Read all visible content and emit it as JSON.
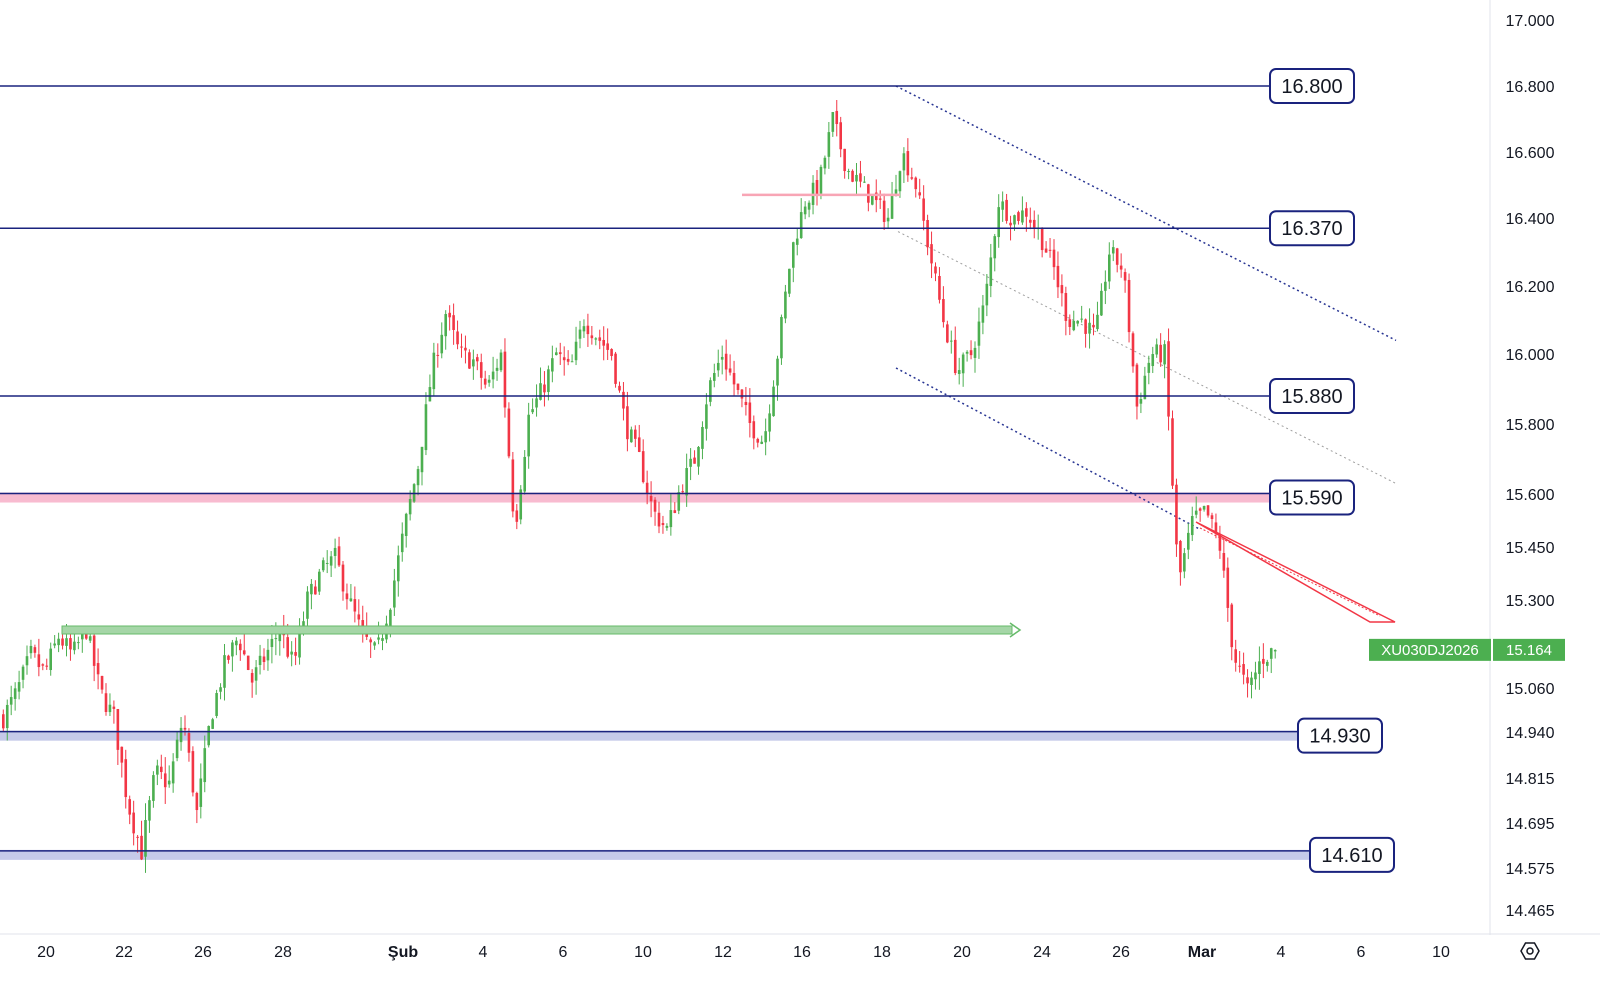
{
  "chart_data": {
    "type": "candlestick",
    "symbol": "XU030DJ2026",
    "last_price": "15.164",
    "y_axis": {
      "ticks": [
        "17.000",
        "16.800",
        "16.600",
        "16.400",
        "16.200",
        "16.000",
        "15.800",
        "15.600",
        "15.450",
        "15.300",
        "15.060",
        "14.940",
        "14.815",
        "14.695",
        "14.575",
        "14.465"
      ]
    },
    "x_axis": {
      "ticks": [
        "20",
        "22",
        "26",
        "28",
        "Şub",
        "4",
        "6",
        "10",
        "12",
        "16",
        "18",
        "20",
        "24",
        "26",
        "Mar",
        "4",
        "6",
        "10"
      ],
      "bold_ticks": [
        "Şub",
        "Mar"
      ]
    },
    "levels": [
      {
        "label": "16.800",
        "value": 16.8,
        "style": "line"
      },
      {
        "label": "16.370",
        "value": 16.37,
        "style": "line"
      },
      {
        "label": "15.880",
        "value": 15.88,
        "style": "line"
      },
      {
        "label": "15.590",
        "value": 15.59,
        "style": "band"
      },
      {
        "label": "14.930",
        "value": 14.93,
        "style": "band"
      },
      {
        "label": "14.610",
        "value": 14.61,
        "style": "band"
      }
    ],
    "colors": {
      "up": "#4caf50",
      "down": "#f23645",
      "level_line": "#1a237e",
      "resistance_band": "#f8bbd0",
      "support_band": "#c5cae9",
      "tag_bg": "#4caf50",
      "channel": "#283593",
      "arrow": "#a5d6a7"
    },
    "ohlc_anchor_closes": [
      14.98,
      15.05,
      15.15,
      15.1,
      15.2,
      15.15,
      15.22,
      15.05,
      14.98,
      14.75,
      14.62,
      14.83,
      14.8,
      14.98,
      14.72,
      14.98,
      15.12,
      15.2,
      15.08,
      15.15,
      15.22,
      15.12,
      15.3,
      15.38,
      15.42,
      15.3,
      15.2,
      15.15,
      15.3,
      15.5,
      15.68,
      15.95,
      16.12,
      16.0,
      15.98,
      15.9,
      16.0,
      15.5,
      15.82,
      15.9,
      16.0,
      15.95,
      16.1,
      16.05,
      16.0,
      15.8,
      15.7,
      15.55,
      15.5,
      15.62,
      15.7,
      15.9,
      16.0,
      15.9,
      15.8,
      15.75,
      16.0,
      16.3,
      16.45,
      16.5,
      16.7,
      16.55,
      16.5,
      16.45,
      16.4,
      16.6,
      16.5,
      16.3,
      16.1,
      15.95,
      16.0,
      16.15,
      16.45,
      16.4,
      16.42,
      16.35,
      16.25,
      16.1,
      16.1,
      16.05,
      16.3,
      16.25,
      15.85,
      16.0,
      16.0,
      15.35,
      15.52,
      15.55,
      15.45,
      15.15,
      15.05,
      15.14,
      15.164
    ]
  }
}
